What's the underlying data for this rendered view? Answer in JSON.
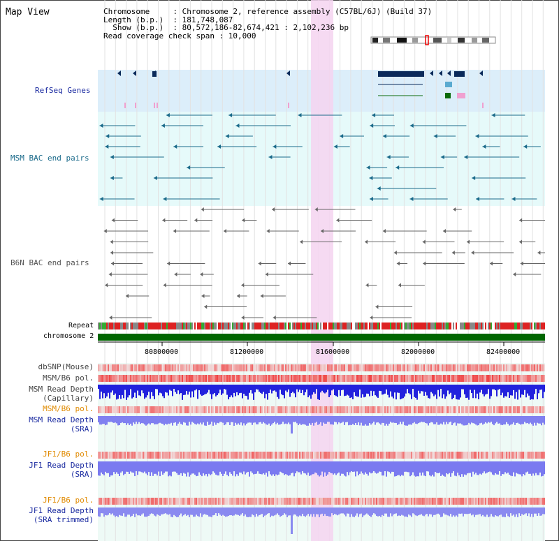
{
  "header": {
    "title": "Map View",
    "info_lines": [
      "Chromosome     : Chromosome 2, reference assembly (C57BL/6J) (Build 37)",
      "Length (b.p.)  : 181,748,087",
      "  Show (b.p.)  : 80,572,186-82,674,421 : 2,102,236 bp",
      "Read coverage check span : 10,000"
    ]
  },
  "tracks": {
    "refseq": "RefSeq Genes",
    "msm_bac": "MSM BAC end pairs",
    "b6n_bac": "B6N BAC end pairs",
    "repeat": "Repeat",
    "chromosome": "chromosome 2",
    "dbsnp": "dbSNP(Mouse)",
    "msm_b6_pol_1": "MSM/B6 pol.",
    "msm_depth_cap_1": "MSM Read Depth",
    "msm_depth_cap_2": "(Capillary)",
    "msm_b6_pol_2": "MSM/B6 pol.",
    "msm_depth_sra_1": "MSM Read Depth",
    "msm_depth_sra_2": "(SRA)",
    "jf1_b6_pol_1": "JF1/B6 pol.",
    "jf1_depth_sra_1": "JF1 Read Depth",
    "jf1_depth_sra_2": "(SRA)",
    "jf1_b6_pol_2": "JF1/B6 pol.",
    "jf1_depth_trim_1": "JF1 Read Depth",
    "jf1_depth_trim_2": "(SRA trimmed)"
  },
  "axis": {
    "ticks": [
      "80800000",
      "81200000",
      "81600000",
      "82000000",
      "82400000"
    ]
  },
  "colors": {
    "refseq_bg": "#dceefa",
    "msm_bg": "#e6fafa",
    "b6n_bg": "#ffffff",
    "highlight": "#f5d4f0",
    "gene": "#0a2a5a",
    "msm_feature": "#1a6a8a",
    "b6n_feature": "#666666",
    "chromosome": "#006600",
    "label_blue": "#1a2aa0",
    "label_teal": "#1a6a8a",
    "label_orange": "#e08a00"
  }
}
